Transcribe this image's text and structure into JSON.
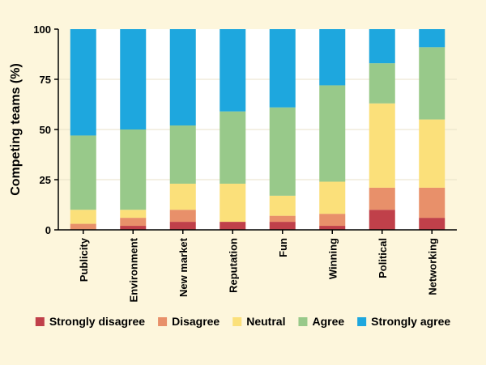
{
  "chart_data": {
    "type": "bar",
    "stacked": true,
    "xlabel": "",
    "ylabel": "Competing teams (%)",
    "ylim": [
      0,
      100
    ],
    "yticks": [
      0,
      25,
      50,
      75,
      100
    ],
    "grid": true,
    "legend_position": "bottom",
    "categories": [
      "Publicity",
      "Environment",
      "New market",
      "Reputation",
      "Fun",
      "Winning",
      "Political",
      "Networking"
    ],
    "series": [
      {
        "name": "Strongly disagree",
        "color": "#c0404a",
        "values": [
          0,
          2,
          4,
          4,
          4,
          2,
          10,
          6
        ]
      },
      {
        "name": "Disagree",
        "color": "#e8906a",
        "values": [
          3,
          4,
          6,
          0,
          3,
          6,
          11,
          15
        ]
      },
      {
        "name": "Neutral",
        "color": "#fbe07a",
        "values": [
          7,
          4,
          13,
          19,
          10,
          16,
          42,
          34
        ]
      },
      {
        "name": "Agree",
        "color": "#98c98a",
        "values": [
          37,
          40,
          29,
          36,
          44,
          48,
          20,
          36
        ]
      },
      {
        "name": "Strongly agree",
        "color": "#1ea7de",
        "values": [
          53,
          50,
          48,
          41,
          39,
          28,
          17,
          9
        ]
      }
    ],
    "colors": {
      "background": "#fdf6dc",
      "plot_background": "#fdf6dc",
      "band": "#ffffff",
      "axis": "#000000"
    }
  }
}
